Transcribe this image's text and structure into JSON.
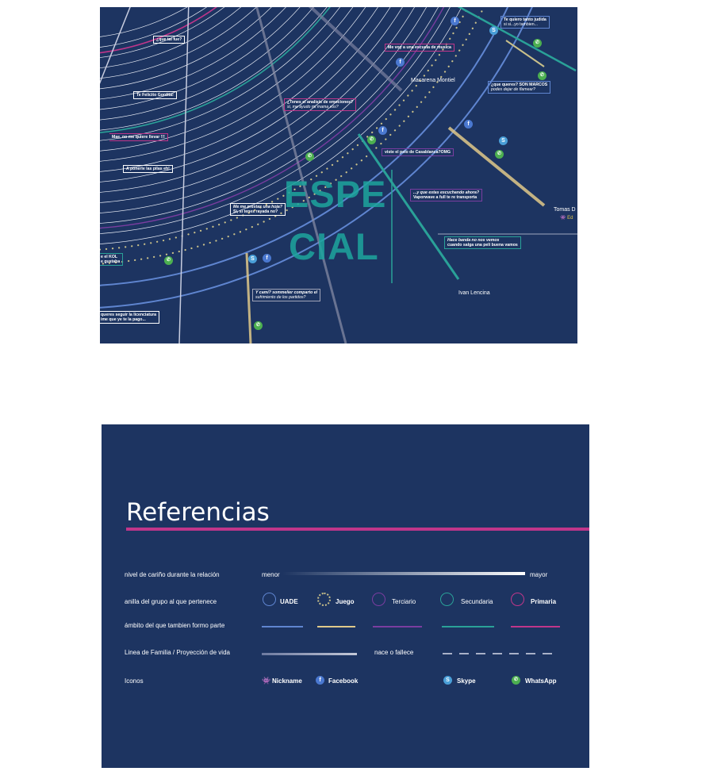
{
  "colors": {
    "background": "#1d3461",
    "uade": "#5f85d0",
    "juego": "#c9c08a",
    "terciario": "#7a3da0",
    "secundaria": "#2aa198",
    "primaria": "#c0368a"
  },
  "diagram": {
    "big_word_line1": "ESPE",
    "big_word_line2": "CIAL",
    "names": {
      "macarena": "Macarena Montiel",
      "ivan": "Ivan Lencina",
      "tomas": "Tomas D"
    },
    "tomas_nick": "Ed",
    "bubbles": {
      "que_tal": "¿que tal fue?",
      "te_quiero_1": "Te quiero tanto judida",
      "te_quiero_2": "si si...yo tambien...",
      "me_voy": "Me voy a una escuela de musica",
      "felicito": "Te Felicito Gordita!",
      "que_queres_1": "¿que queres? SON MARCOS",
      "que_queres_2": "podes dejar de flamear?",
      "analisis_1": "¿Tenes el analisis de emociones?",
      "analisis_2": "si, me ayudo mi mama vos?",
      "mae": "Mae, no me quiere llevar !!!",
      "viste": "viste el pelo de Casablanca?OMG",
      "pilas": "A ponerle las pilas eh!",
      "escuchando_1": "...y que estas escuchando ahora?",
      "escuchando_2": "Vaporwave a full te re transporta",
      "prestas_1": "Me me prestas una hoja?",
      "prestas_2": "Si, si tenes rayada no?",
      "hace_banda_1": "Hace banda no nos vemos",
      "hace_banda_2": "cuando salga una peli buena vamos",
      "kol_1": "e el KOL",
      "kol_2": "e gustaba",
      "cami_1": "Y cami? sommelier comparto el",
      "cami_2": "sufrimiento de los partidos?",
      "licenciatura_1": "queres seguir la licenciatura",
      "licenciatura_2": "ime que ye te la pago..."
    },
    "icon_letters": {
      "facebook": "f",
      "whatsapp": "✆",
      "skype": "S"
    }
  },
  "legend": {
    "title": "Referencias",
    "rows": {
      "carino": "nivel de cariño durante la relación",
      "anilla": "anilla del grupo al que pertenece",
      "ambito": "ámbito del que tambien formo parte",
      "linea": "Linea de Familia / Proyección de vida",
      "iconos": "Iconos"
    },
    "menor": "menor",
    "mayor": "mayor",
    "groups": {
      "uade": "UADE",
      "juego": "Juego",
      "terciario": "Terciario",
      "secundaria": "Secundaria",
      "primaria": "Primaria"
    },
    "nace": "nace o fallece",
    "icons": {
      "nickname": "Nickname",
      "facebook": "Facebook",
      "skype": "Skype",
      "whatsapp": "WhatsApp"
    }
  }
}
